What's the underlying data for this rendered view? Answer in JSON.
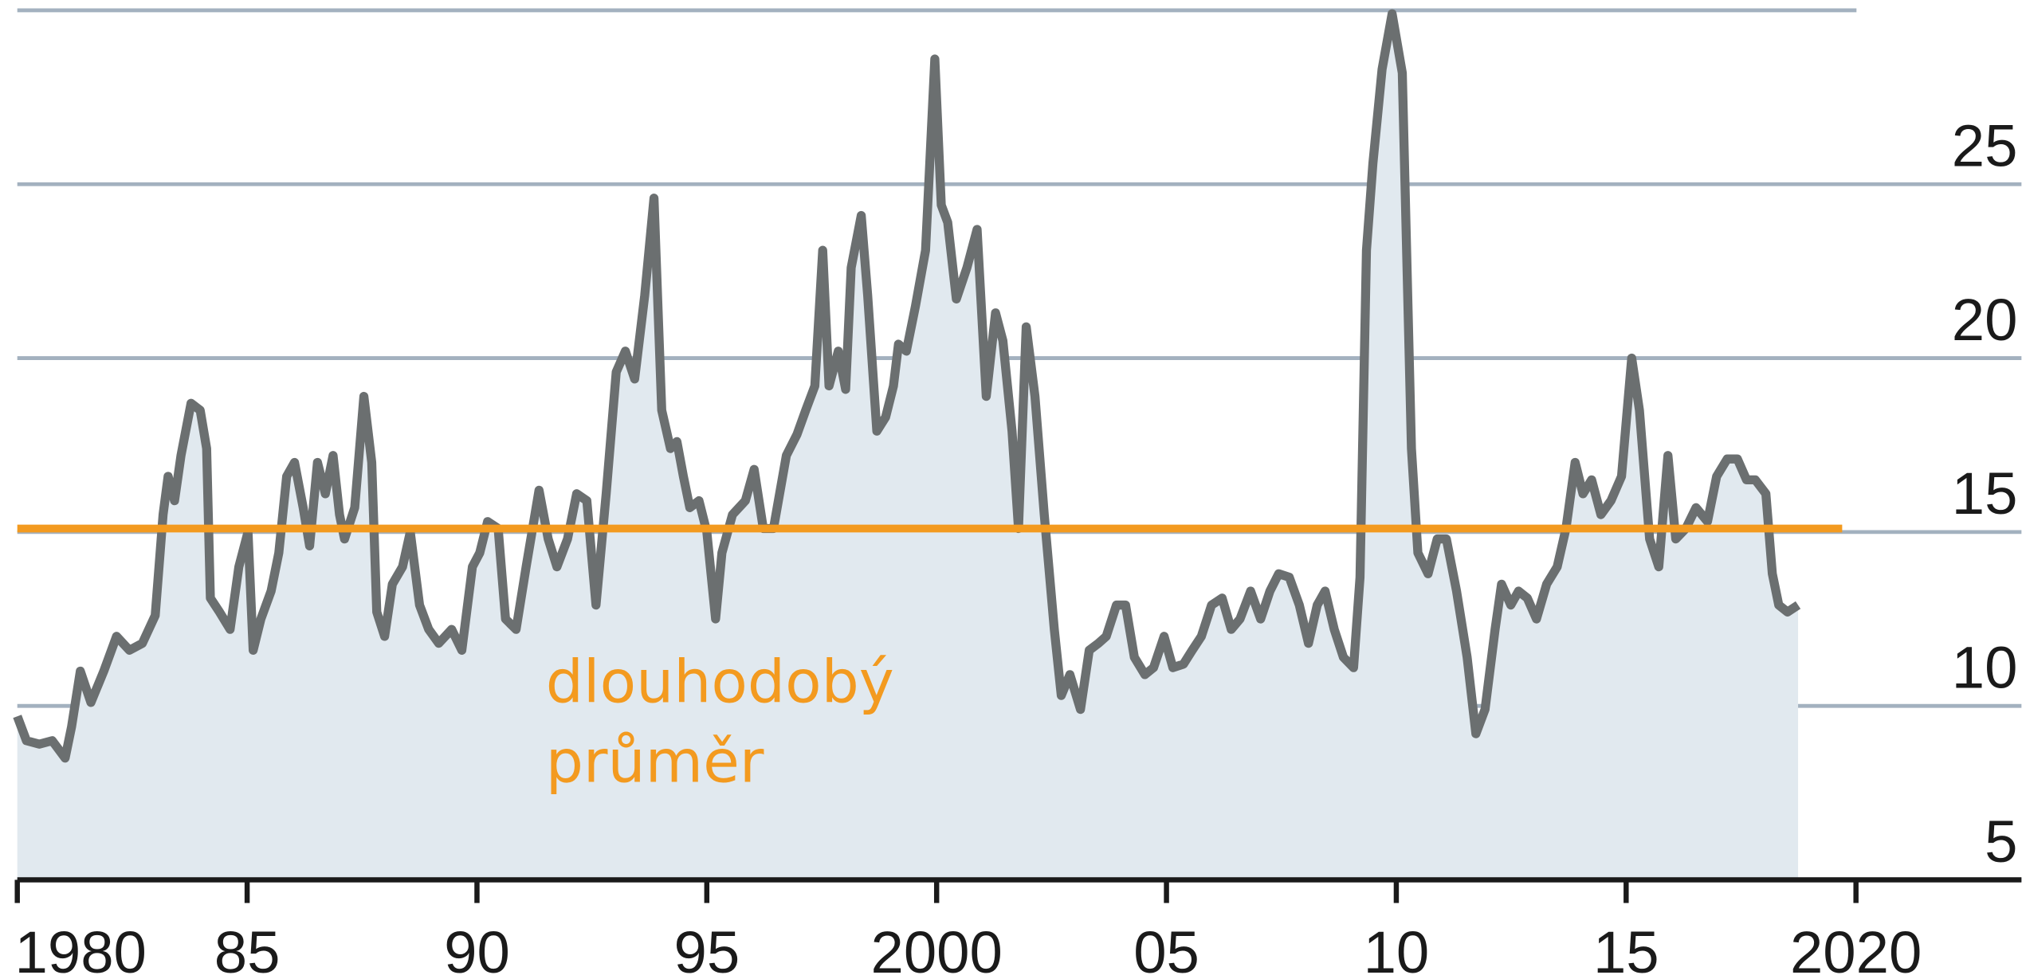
{
  "chart_data": {
    "type": "line",
    "xlim": [
      1980,
      2023.6
    ],
    "ylim": [
      5,
      30
    ],
    "xticks": [
      1980,
      {
        "value": 1985,
        "label": "85"
      },
      {
        "value": 1990,
        "label": "90"
      },
      {
        "value": 1995,
        "label": "95"
      },
      2000,
      {
        "value": 2005,
        "label": "05"
      },
      {
        "value": 2010,
        "label": "10"
      },
      {
        "value": 2015,
        "label": "15"
      },
      2020
    ],
    "yticks": [
      5,
      10,
      15,
      20,
      25
    ],
    "grid": true,
    "series": [
      {
        "color": "#6b6f70",
        "fill": "#e1e9ef",
        "x": [
          1980.0,
          1980.2,
          1980.48,
          1980.76,
          1981.04,
          1981.18,
          1981.37,
          1981.6,
          1981.88,
          1982.16,
          1982.44,
          1982.72,
          1983.0,
          1983.17,
          1983.28,
          1983.42,
          1983.56,
          1983.78,
          1983.98,
          1984.12,
          1984.2,
          1984.4,
          1984.63,
          1984.82,
          1985.02,
          1985.13,
          1985.3,
          1985.52,
          1985.69,
          1985.86,
          1986.03,
          1986.22,
          1986.36,
          1986.53,
          1986.7,
          1986.87,
          1987.01,
          1987.12,
          1987.34,
          1987.54,
          1987.71,
          1987.82,
          1987.99,
          1988.16,
          1988.38,
          1988.55,
          1988.75,
          1988.95,
          1989.17,
          1989.45,
          1989.67,
          1989.9,
          1990.06,
          1990.23,
          1990.46,
          1990.62,
          1990.85,
          1991.07,
          1991.35,
          1991.55,
          1991.74,
          1991.97,
          1992.17,
          1992.39,
          1992.59,
          1992.81,
          1993.03,
          1993.23,
          1993.43,
          1993.65,
          1993.85,
          1994.02,
          1994.21,
          1994.35,
          1994.49,
          1994.63,
          1994.83,
          1995.0,
          1995.19,
          1995.33,
          1995.56,
          1995.84,
          1996.03,
          1996.23,
          1996.45,
          1996.73,
          1996.96,
          1997.15,
          1997.35,
          1997.52,
          1997.66,
          1997.86,
          1998.02,
          1998.14,
          1998.36,
          1998.5,
          1998.7,
          1998.89,
          1999.06,
          1999.17,
          1999.34,
          1999.54,
          1999.76,
          1999.96,
          2000.1,
          2000.24,
          2000.43,
          2000.66,
          2000.88,
          2001.08,
          2001.28,
          2001.44,
          2001.64,
          2001.78,
          2001.95,
          2002.14,
          2002.34,
          2002.56,
          2002.71,
          2002.9,
          2003.13,
          2003.32,
          2003.52,
          2003.69,
          2003.91,
          2004.11,
          2004.3,
          2004.53,
          2004.72,
          2004.95,
          2005.14,
          2005.37,
          2005.56,
          2005.76,
          2005.98,
          2006.21,
          2006.41,
          2006.6,
          2006.83,
          2007.05,
          2007.25,
          2007.44,
          2007.67,
          2007.89,
          2008.09,
          2008.28,
          2008.45,
          2008.65,
          2008.85,
          2009.07,
          2009.21,
          2009.35,
          2009.49,
          2009.69,
          2009.91,
          2010.13,
          2010.33,
          2010.47,
          2010.69,
          2010.89,
          2011.09,
          2011.31,
          2011.54,
          2011.73,
          2011.93,
          2012.15,
          2012.29,
          2012.49,
          2012.66,
          2012.85,
          2013.05,
          2013.27,
          2013.5,
          2013.69,
          2013.89,
          2014.06,
          2014.25,
          2014.45,
          2014.67,
          2014.9,
          2015.12,
          2015.29,
          2015.51,
          2015.71,
          2015.91,
          2016.08,
          2016.3,
          2016.52,
          2016.77,
          2016.97,
          2017.2,
          2017.42,
          2017.62,
          2017.81,
          2018.04,
          2018.18,
          2018.32,
          2018.51,
          2018.74
        ],
        "values": [
          9.7,
          9.0,
          8.9,
          9.0,
          8.5,
          9.4,
          11.0,
          10.1,
          11.0,
          12.0,
          11.6,
          11.8,
          12.6,
          15.5,
          16.6,
          15.9,
          17.2,
          18.7,
          18.5,
          17.4,
          13.1,
          12.7,
          12.2,
          14.0,
          15.0,
          11.6,
          12.5,
          13.3,
          14.4,
          16.6,
          17.0,
          15.7,
          14.6,
          17.0,
          16.1,
          17.2,
          15.5,
          14.8,
          15.7,
          18.9,
          17.0,
          12.7,
          12.0,
          13.5,
          14.0,
          15.0,
          12.9,
          12.2,
          11.8,
          12.2,
          11.6,
          14.0,
          14.4,
          15.3,
          15.1,
          12.5,
          12.2,
          14.0,
          16.2,
          14.8,
          14.0,
          14.8,
          16.1,
          15.9,
          12.9,
          16.1,
          19.6,
          20.2,
          19.4,
          21.8,
          24.6,
          18.5,
          17.4,
          17.6,
          16.6,
          15.7,
          15.9,
          15.0,
          12.5,
          14.4,
          15.5,
          15.9,
          16.8,
          15.1,
          15.1,
          17.2,
          17.8,
          18.5,
          19.2,
          23.1,
          19.2,
          20.2,
          19.1,
          22.6,
          24.1,
          21.8,
          17.9,
          18.3,
          19.2,
          20.4,
          20.2,
          21.5,
          23.1,
          28.6,
          24.4,
          23.9,
          21.7,
          22.6,
          23.7,
          18.9,
          21.3,
          20.5,
          17.9,
          15.1,
          20.9,
          18.9,
          15.5,
          12.2,
          10.3,
          10.9,
          9.9,
          11.6,
          11.8,
          12.0,
          12.9,
          12.9,
          11.4,
          10.9,
          11.1,
          12.0,
          11.1,
          11.2,
          11.6,
          12.0,
          12.9,
          13.1,
          12.2,
          12.5,
          13.3,
          12.5,
          13.3,
          13.8,
          13.7,
          12.9,
          11.8,
          12.9,
          13.3,
          12.2,
          11.4,
          11.1,
          13.7,
          23.1,
          25.6,
          28.3,
          29.9,
          28.2,
          17.4,
          14.4,
          13.8,
          14.8,
          14.8,
          13.3,
          11.4,
          9.2,
          9.9,
          12.2,
          13.5,
          12.9,
          13.3,
          13.1,
          12.5,
          13.5,
          14.0,
          15.1,
          17.0,
          16.1,
          16.5,
          15.5,
          15.9,
          16.6,
          20.0,
          18.5,
          14.8,
          14.0,
          17.2,
          14.8,
          15.1,
          15.7,
          15.3,
          16.6,
          17.1,
          17.1,
          16.5,
          16.5,
          16.1,
          13.8,
          12.9,
          12.7,
          12.9
        ]
      }
    ],
    "average": {
      "value": 15.1,
      "x": [
        1980,
        2019.7
      ],
      "color": "#f39a1f"
    },
    "annotation": [
      "dlouhodobý",
      "průměr"
    ]
  }
}
